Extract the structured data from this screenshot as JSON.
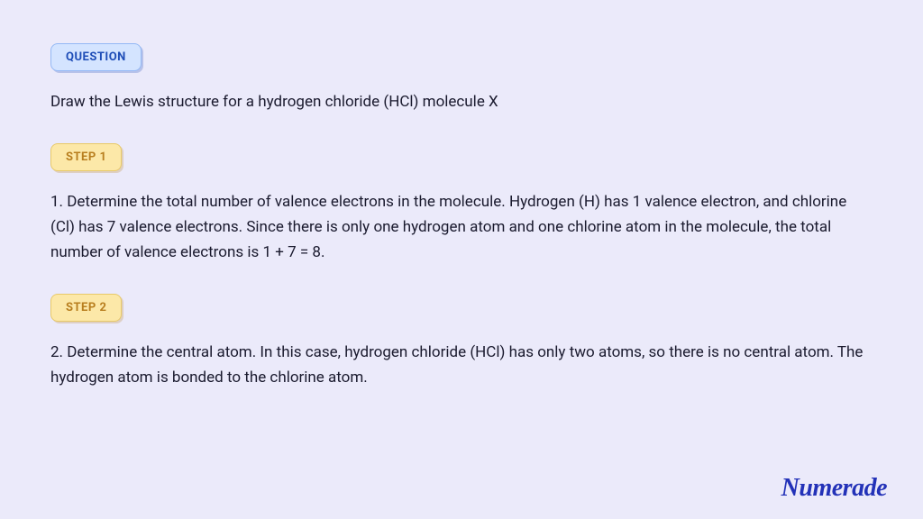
{
  "background_color": "#ebeafa",
  "text_color": "#1a1a2e",
  "body_fontsize": 17,
  "badges": {
    "question": {
      "label": "QUESTION",
      "bg_color": "#d4e4ff",
      "text_color": "#1e4db7",
      "border_color": "#93b8f5"
    },
    "step1": {
      "label": "STEP 1",
      "bg_color": "#fce8a8",
      "text_color": "#b87e1e",
      "border_color": "#e8c968"
    },
    "step2": {
      "label": "STEP 2",
      "bg_color": "#fce8a8",
      "text_color": "#b87e1e",
      "border_color": "#e8c968"
    }
  },
  "question_text": "Draw the Lewis structure for a hydrogen chloride (HCl) molecule X",
  "step1_text": "1. Determine the total number of valence electrons in the molecule. Hydrogen (H) has 1 valence electron, and chlorine (Cl) has 7 valence electrons. Since there is only one hydrogen atom and one chlorine atom in the molecule, the total number of valence electrons is 1 + 7 = 8.",
  "step2_text": "2. Determine the central atom. In this case, hydrogen chloride (HCl) has only two atoms, so there is no central atom. The hydrogen atom is bonded to the chlorine atom.",
  "logo_text": "Numerade",
  "logo_color": "#2332b8"
}
